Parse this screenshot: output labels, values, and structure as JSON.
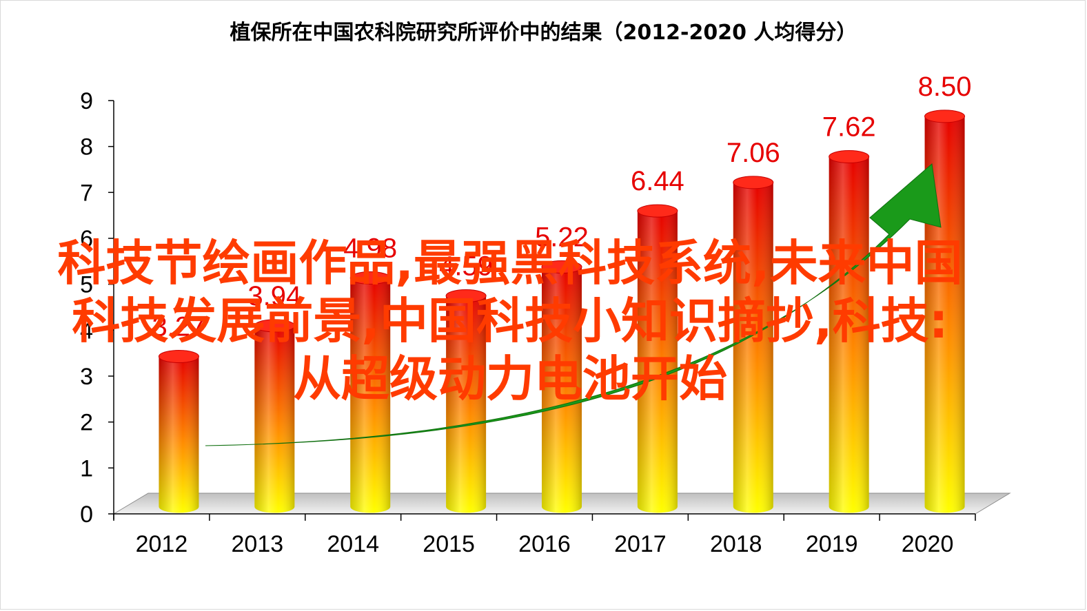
{
  "chart_data": {
    "type": "bar",
    "title": "植保所在中国农科院研究所评价中的结果（2012-2020  人均得分）",
    "categories": [
      "2012",
      "2013",
      "2014",
      "2015",
      "2016",
      "2017",
      "2018",
      "2019",
      "2020"
    ],
    "values": [
      3.27,
      3.94,
      4.98,
      4.59,
      5.22,
      6.44,
      7.06,
      7.62,
      8.5
    ],
    "value_labels": [
      "3.27",
      "3.94",
      "4.98",
      "4.59",
      "5.22",
      "6.44",
      "7.06",
      "7.62",
      "8.50"
    ],
    "y_ticks": [
      "0",
      "1",
      "2",
      "3",
      "4",
      "5",
      "6",
      "7",
      "8",
      "9"
    ],
    "ylim": [
      0,
      9
    ],
    "xlabel": "",
    "ylabel": "",
    "grid": false,
    "legend": "none",
    "bar_style": "3d-cylinder",
    "colors": {
      "bar_top": "#e60000",
      "bar_mid": "#ff8c00",
      "bar_bottom": "#ffff00",
      "label": "#e60000",
      "arrow": "#1a9a1a",
      "floor": "#d9d9d9"
    }
  },
  "overlay": {
    "line1": "科技节绘画作品,最强黑科技系统,未来中国",
    "line2": "科技发展前景,中国科技小知识摘抄,科技:",
    "line3": "从超级动力电池开始",
    "color": "#ff3b00"
  }
}
